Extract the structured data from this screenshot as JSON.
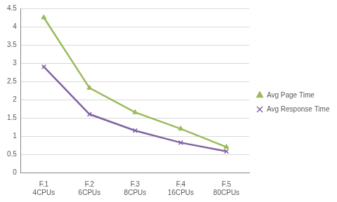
{
  "chart_data": {
    "type": "line",
    "categories": [
      [
        "F.1",
        "4CPUs"
      ],
      [
        "F.2",
        "6CPUs"
      ],
      [
        "F.3",
        "8CPUs"
      ],
      [
        "F.4",
        "16CPUs"
      ],
      [
        "F.5",
        "80CPUs"
      ]
    ],
    "series": [
      {
        "name": "Avg Page Time",
        "color": "#9bbb59",
        "marker": "triangle",
        "values": [
          4.25,
          2.32,
          1.65,
          1.2,
          0.7
        ]
      },
      {
        "name": "Avg Response Time",
        "color": "#8064a2",
        "marker": "x",
        "values": [
          2.9,
          1.6,
          1.15,
          0.82,
          0.58
        ]
      }
    ],
    "ylim": [
      0,
      4.5
    ],
    "yticks": [
      0,
      0.5,
      1,
      1.5,
      2,
      2.5,
      3,
      3.5,
      4,
      4.5
    ],
    "grid": true,
    "legend": "right"
  }
}
